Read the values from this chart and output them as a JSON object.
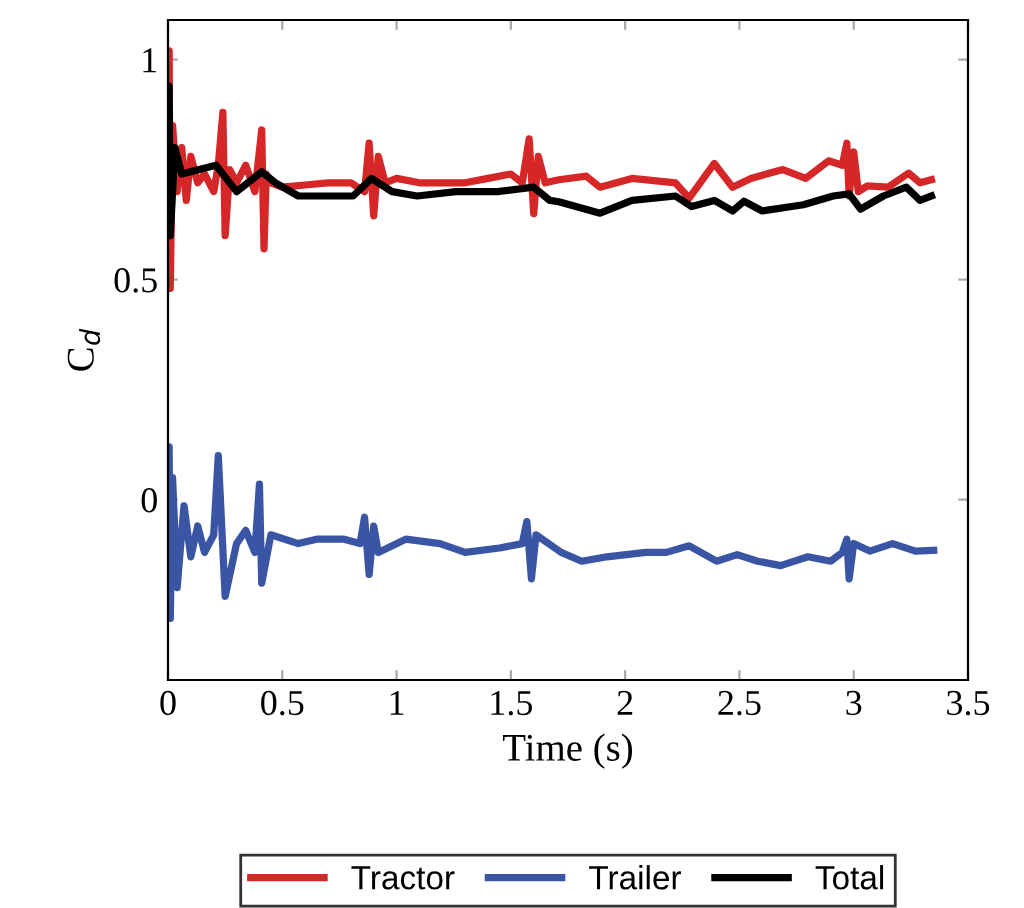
{
  "chart_data": {
    "type": "line",
    "xlabel": "Time (s)",
    "ylabel": "C$_{d}$",
    "xlim": [
      0,
      3.5
    ],
    "xticks": [
      0,
      0.5,
      1,
      1.5,
      2,
      2.5,
      3,
      3.5
    ],
    "ylim": [
      -0.41,
      1.09
    ],
    "yticks": [
      0,
      0.5,
      1
    ],
    "grid": false,
    "legend": "bottom",
    "marker": "none",
    "line_style": "solid",
    "series": [
      {
        "name": "Tractor",
        "color": "#d62728",
        "x": [
          0,
          0.005,
          0.01,
          0.02,
          0.04,
          0.06,
          0.08,
          0.1,
          0.13,
          0.16,
          0.2,
          0.22,
          0.24,
          0.25,
          0.27,
          0.3,
          0.34,
          0.38,
          0.41,
          0.42,
          0.43,
          0.45,
          0.5,
          0.6,
          0.7,
          0.8,
          0.86,
          0.88,
          0.9,
          0.92,
          0.95,
          1.0,
          1.1,
          1.2,
          1.3,
          1.4,
          1.5,
          1.55,
          1.58,
          1.6,
          1.62,
          1.65,
          1.71,
          1.83,
          1.89,
          2.03,
          2.22,
          2.28,
          2.39,
          2.47,
          2.55,
          2.69,
          2.79,
          2.89,
          2.95,
          2.97,
          2.98,
          3.0,
          3.02,
          3.06,
          3.15,
          3.24,
          3.29,
          3.34
        ],
        "values": [
          0.7,
          1.02,
          0.48,
          0.85,
          0.7,
          0.8,
          0.68,
          0.78,
          0.72,
          0.74,
          0.7,
          0.76,
          0.88,
          0.6,
          0.75,
          0.72,
          0.76,
          0.7,
          0.84,
          0.57,
          0.74,
          0.72,
          0.71,
          0.715,
          0.72,
          0.72,
          0.7,
          0.81,
          0.645,
          0.78,
          0.72,
          0.73,
          0.72,
          0.72,
          0.72,
          0.73,
          0.74,
          0.72,
          0.82,
          0.65,
          0.78,
          0.72,
          0.727,
          0.735,
          0.71,
          0.73,
          0.72,
          0.685,
          0.764,
          0.71,
          0.73,
          0.75,
          0.73,
          0.77,
          0.76,
          0.81,
          0.69,
          0.79,
          0.7,
          0.713,
          0.71,
          0.742,
          0.72,
          0.727
        ]
      },
      {
        "name": "Trailer",
        "color": "#3a55a4",
        "x": [
          0,
          0.005,
          0.01,
          0.02,
          0.04,
          0.07,
          0.1,
          0.13,
          0.16,
          0.2,
          0.22,
          0.25,
          0.3,
          0.34,
          0.38,
          0.4,
          0.41,
          0.45,
          0.57,
          0.65,
          0.77,
          0.84,
          0.86,
          0.88,
          0.9,
          0.92,
          1.04,
          1.19,
          1.3,
          1.45,
          1.55,
          1.57,
          1.59,
          1.61,
          1.72,
          1.81,
          1.92,
          2.09,
          2.18,
          2.28,
          2.4,
          2.49,
          2.58,
          2.68,
          2.8,
          2.9,
          2.95,
          2.97,
          2.98,
          3.0,
          3.07,
          3.17,
          3.27,
          3.35
        ],
        "values": [
          -0.05,
          0.12,
          -0.27,
          0.05,
          -0.2,
          -0.014,
          -0.13,
          -0.06,
          -0.12,
          -0.08,
          0.1,
          -0.22,
          -0.1,
          -0.07,
          -0.12,
          0.035,
          -0.19,
          -0.08,
          -0.1,
          -0.09,
          -0.09,
          -0.1,
          -0.04,
          -0.17,
          -0.06,
          -0.12,
          -0.09,
          -0.1,
          -0.12,
          -0.11,
          -0.1,
          -0.05,
          -0.18,
          -0.08,
          -0.12,
          -0.14,
          -0.13,
          -0.12,
          -0.12,
          -0.105,
          -0.14,
          -0.125,
          -0.14,
          -0.15,
          -0.13,
          -0.14,
          -0.12,
          -0.09,
          -0.18,
          -0.1,
          -0.117,
          -0.1,
          -0.117,
          -0.115
        ]
      },
      {
        "name": "Total",
        "color": "#000000",
        "x": [
          0,
          0.005,
          0.01,
          0.03,
          0.06,
          0.21,
          0.3,
          0.41,
          0.47,
          0.57,
          0.81,
          0.89,
          0.98,
          1.09,
          1.26,
          1.44,
          1.6,
          1.67,
          1.71,
          1.89,
          2.03,
          2.22,
          2.29,
          2.39,
          2.47,
          2.52,
          2.6,
          2.78,
          2.91,
          2.98,
          3.03,
          3.13,
          3.23,
          3.29,
          3.34
        ],
        "values": [
          0.7,
          0.94,
          0.6,
          0.8,
          0.74,
          0.76,
          0.7,
          0.745,
          0.72,
          0.69,
          0.69,
          0.73,
          0.7,
          0.69,
          0.7,
          0.7,
          0.71,
          0.68,
          0.677,
          0.651,
          0.68,
          0.69,
          0.666,
          0.68,
          0.656,
          0.678,
          0.656,
          0.67,
          0.69,
          0.695,
          0.66,
          0.69,
          0.71,
          0.68,
          0.69
        ]
      }
    ]
  }
}
